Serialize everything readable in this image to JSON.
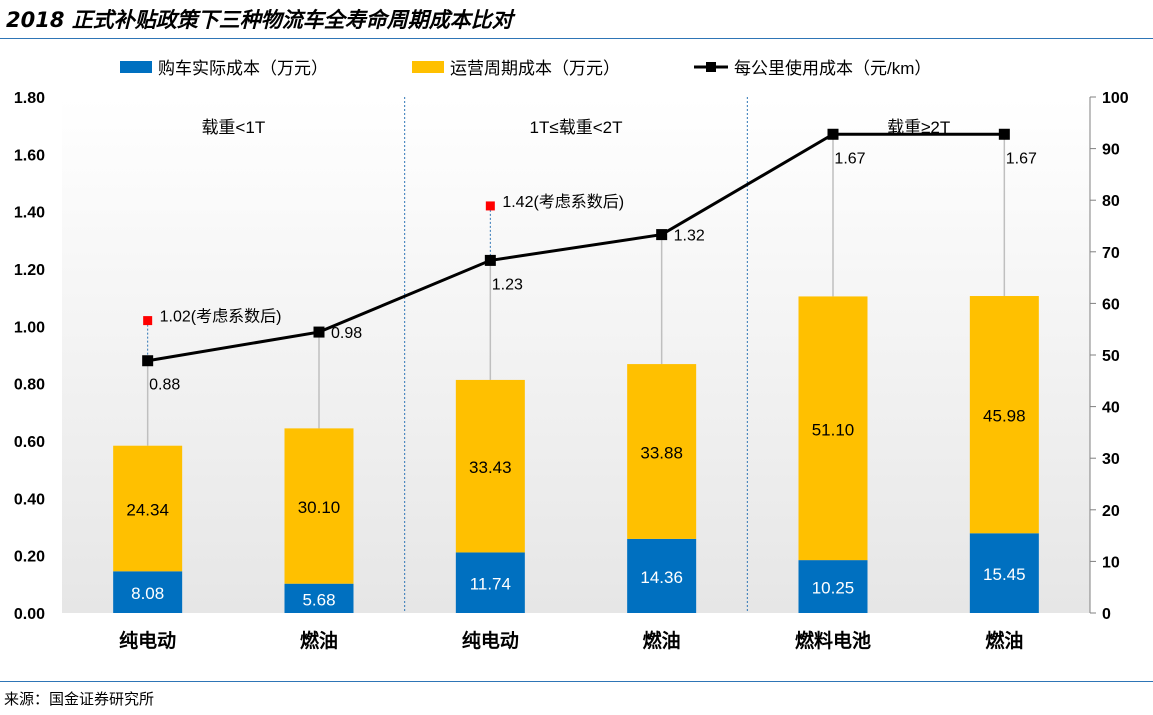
{
  "title": "2018 正式补贴政策下三种物流车全寿命周期成本比对",
  "source": "来源：国金证券研究所",
  "chart_data": {
    "type": "bar",
    "stacked": true,
    "categories": [
      "纯电动",
      "燃油",
      "纯电动",
      "燃油",
      "燃料电池",
      "燃油"
    ],
    "groups": [
      {
        "label": "载重<1T",
        "categories": [
          0,
          1
        ]
      },
      {
        "label": "1T≤载重<2T",
        "categories": [
          2,
          3
        ]
      },
      {
        "label": "载重≥2T",
        "categories": [
          4,
          5
        ]
      }
    ],
    "series": [
      {
        "name": "购车实际成本（万元）",
        "type": "bar",
        "axis": "right",
        "color": "#0070c0",
        "values": [
          8.08,
          5.68,
          11.74,
          14.36,
          10.25,
          15.45
        ],
        "labels": [
          "8.08",
          "5.68",
          "11.74",
          "14.36",
          "10.25",
          "15.45"
        ]
      },
      {
        "name": "运营周期成本（万元）",
        "type": "bar",
        "axis": "right",
        "color": "#ffc000",
        "values": [
          24.34,
          30.1,
          33.43,
          33.88,
          51.1,
          45.98
        ],
        "labels": [
          "24.34",
          "30.10",
          "33.43",
          "33.88",
          "51.10",
          "45.98"
        ]
      },
      {
        "name": "每公里使用成本（元/km）",
        "type": "line",
        "axis": "left",
        "color": "#000000",
        "values": [
          0.88,
          0.98,
          1.23,
          1.32,
          1.67,
          1.67
        ],
        "labels": [
          "0.88",
          "0.98",
          "1.23",
          "1.32",
          "1.67",
          "1.67"
        ]
      }
    ],
    "adjusted_points": [
      {
        "category": 0,
        "value": 1.02,
        "label": "1.02(考虑系数后)",
        "color": "#ff0000"
      },
      {
        "category": 2,
        "value": 1.42,
        "label": "1.42(考虑系数后)",
        "color": "#ff0000"
      }
    ],
    "y_left": {
      "ylim": [
        0,
        1.8
      ],
      "ticks": [
        "0.00",
        "0.20",
        "0.40",
        "0.60",
        "0.80",
        "1.00",
        "1.20",
        "1.40",
        "1.60",
        "1.80"
      ]
    },
    "y_right": {
      "ylim": [
        0,
        100
      ],
      "ticks": [
        "0",
        "10",
        "20",
        "30",
        "40",
        "50",
        "60",
        "70",
        "80",
        "90",
        "100"
      ]
    },
    "legend_position": "top",
    "grid": false
  }
}
